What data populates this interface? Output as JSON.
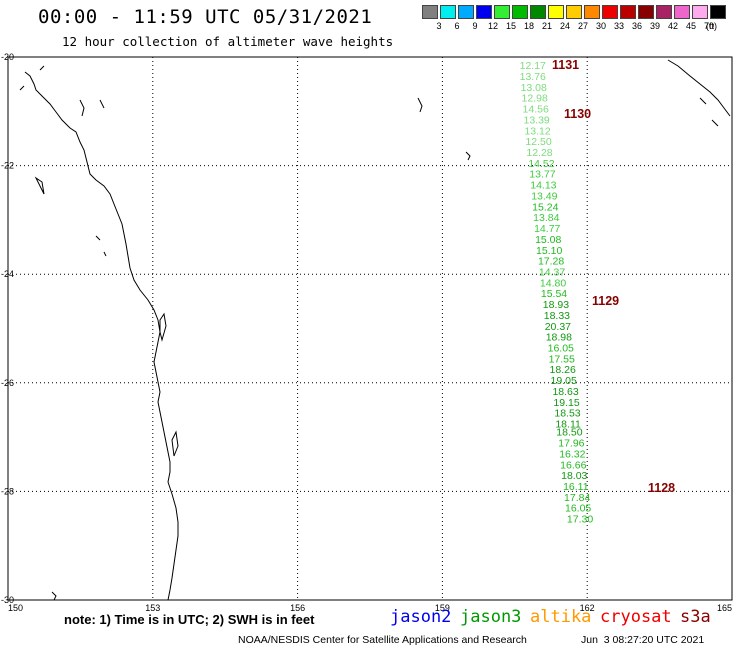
{
  "header": {
    "title": "00:00 - 11:59 UTC 05/31/2021",
    "subtitle": "12 hour collection of altimeter wave heights"
  },
  "legend": {
    "unit": "(ft)",
    "items": [
      {
        "label": "3",
        "color": "#808080"
      },
      {
        "label": "6",
        "color": "#00eeee"
      },
      {
        "label": "9",
        "color": "#00aaff"
      },
      {
        "label": "12",
        "color": "#0000ee"
      },
      {
        "label": "15",
        "color": "#33ee33"
      },
      {
        "label": "18",
        "color": "#00bb00"
      },
      {
        "label": "21",
        "color": "#008800"
      },
      {
        "label": "24",
        "color": "#ffff00"
      },
      {
        "label": "27",
        "color": "#ffcc00"
      },
      {
        "label": "30",
        "color": "#ff8800"
      },
      {
        "label": "33",
        "color": "#ee0000"
      },
      {
        "label": "36",
        "color": "#bb0000"
      },
      {
        "label": "39",
        "color": "#880000"
      },
      {
        "label": "42",
        "color": "#aa2266"
      },
      {
        "label": "45",
        "color": "#ee66cc"
      },
      {
        "label": "70",
        "color": "#ffaaee"
      },
      {
        "label": "",
        "color": "#000000"
      }
    ]
  },
  "axes": {
    "lat_ticks": [
      "-20",
      "-22",
      "-24",
      "-26",
      "-28",
      "-30"
    ],
    "lon_ticks": [
      "150",
      "153",
      "156",
      "159",
      "162",
      "165"
    ]
  },
  "track_times": [
    "1131",
    "1130",
    "1129",
    "1128"
  ],
  "track_points": [
    {
      "lon": 160.6,
      "lat": -20.15,
      "value": "12.17",
      "color": "#7cdd7c"
    },
    {
      "lon": 160.6,
      "lat": -20.35,
      "value": "13.76",
      "color": "#7cdd7c"
    },
    {
      "lon": 160.62,
      "lat": -20.55,
      "value": "13.08",
      "color": "#7cdd7c"
    },
    {
      "lon": 160.64,
      "lat": -20.75,
      "value": "12.98",
      "color": "#7cdd7c"
    },
    {
      "lon": 160.66,
      "lat": -20.95,
      "value": "14.56",
      "color": "#7cdd7c"
    },
    {
      "lon": 160.68,
      "lat": -21.15,
      "value": "13.39",
      "color": "#7cdd7c"
    },
    {
      "lon": 160.7,
      "lat": -21.35,
      "value": "13.12",
      "color": "#7cdd7c"
    },
    {
      "lon": 160.72,
      "lat": -21.55,
      "value": "12.50",
      "color": "#7cdd7c"
    },
    {
      "lon": 160.74,
      "lat": -21.75,
      "value": "12.28",
      "color": "#7cdd7c"
    },
    {
      "lon": 160.78,
      "lat": -21.95,
      "value": "14.52",
      "color": "#3ecc3e"
    },
    {
      "lon": 160.8,
      "lat": -22.15,
      "value": "13.77",
      "color": "#3ecc3e"
    },
    {
      "lon": 160.82,
      "lat": -22.35,
      "value": "14.13",
      "color": "#3ecc3e"
    },
    {
      "lon": 160.84,
      "lat": -22.55,
      "value": "13.49",
      "color": "#3ecc3e"
    },
    {
      "lon": 160.86,
      "lat": -22.75,
      "value": "15.24",
      "color": "#22bb22"
    },
    {
      "lon": 160.88,
      "lat": -22.95,
      "value": "13.84",
      "color": "#3ecc3e"
    },
    {
      "lon": 160.9,
      "lat": -23.15,
      "value": "14.77",
      "color": "#3ecc3e"
    },
    {
      "lon": 160.92,
      "lat": -23.35,
      "value": "15.08",
      "color": "#22bb22"
    },
    {
      "lon": 160.94,
      "lat": -23.55,
      "value": "15.10",
      "color": "#22bb22"
    },
    {
      "lon": 160.98,
      "lat": -23.75,
      "value": "17.28",
      "color": "#22bb22"
    },
    {
      "lon": 161.0,
      "lat": -23.95,
      "value": "14.37",
      "color": "#3ecc3e"
    },
    {
      "lon": 161.02,
      "lat": -24.15,
      "value": "14.80",
      "color": "#3ecc3e"
    },
    {
      "lon": 161.04,
      "lat": -24.35,
      "value": "15.54",
      "color": "#22bb22"
    },
    {
      "lon": 161.08,
      "lat": -24.55,
      "value": "18.93",
      "color": "#119911"
    },
    {
      "lon": 161.1,
      "lat": -24.75,
      "value": "18.33",
      "color": "#119911"
    },
    {
      "lon": 161.12,
      "lat": -24.95,
      "value": "20.37",
      "color": "#119911"
    },
    {
      "lon": 161.14,
      "lat": -25.15,
      "value": "18.98",
      "color": "#119911"
    },
    {
      "lon": 161.18,
      "lat": -25.35,
      "value": "16.05",
      "color": "#22bb22"
    },
    {
      "lon": 161.2,
      "lat": -25.55,
      "value": "17.55",
      "color": "#22bb22"
    },
    {
      "lon": 161.22,
      "lat": -25.75,
      "value": "18.26",
      "color": "#119911"
    },
    {
      "lon": 161.24,
      "lat": -25.95,
      "value": "19.05",
      "color": "#119911"
    },
    {
      "lon": 161.28,
      "lat": -26.15,
      "value": "18.63",
      "color": "#119911"
    },
    {
      "lon": 161.3,
      "lat": -26.35,
      "value": "19.15",
      "color": "#119911"
    },
    {
      "lon": 161.32,
      "lat": -26.55,
      "value": "18.53",
      "color": "#119911"
    },
    {
      "lon": 161.34,
      "lat": -26.75,
      "value": "18.11",
      "color": "#119911"
    },
    {
      "lon": 161.36,
      "lat": -26.9,
      "value": "18.50",
      "color": "#119911"
    },
    {
      "lon": 161.4,
      "lat": -27.1,
      "value": "17.96",
      "color": "#22bb22"
    },
    {
      "lon": 161.42,
      "lat": -27.3,
      "value": "16.32",
      "color": "#22bb22"
    },
    {
      "lon": 161.44,
      "lat": -27.5,
      "value": "16.66",
      "color": "#22bb22"
    },
    {
      "lon": 161.46,
      "lat": -27.7,
      "value": "18.03",
      "color": "#119911"
    },
    {
      "lon": 161.5,
      "lat": -27.9,
      "value": "16.11",
      "color": "#22bb22"
    },
    {
      "lon": 161.52,
      "lat": -28.1,
      "value": "17.84",
      "color": "#22bb22"
    },
    {
      "lon": 161.54,
      "lat": -28.3,
      "value": "16.05",
      "color": "#22bb22"
    },
    {
      "lon": 161.58,
      "lat": -28.5,
      "value": "17.30",
      "color": "#22bb22"
    }
  ],
  "footer": {
    "note": "note: 1) Time is in UTC; 2) SWH is in feet",
    "satellites": [
      {
        "name": "jason2",
        "color": "#0000ee"
      },
      {
        "name": "jason3",
        "color": "#009900"
      },
      {
        "name": "altika",
        "color": "#ff9900"
      },
      {
        "name": "cryosat",
        "color": "#ee0000"
      },
      {
        "name": "s3a",
        "color": "#880000"
      }
    ],
    "credit": "NOAA/NESDIS Center for Satellite Applications and Research",
    "timestamp": "Jun  3 08:27:20 UTC 2021"
  }
}
